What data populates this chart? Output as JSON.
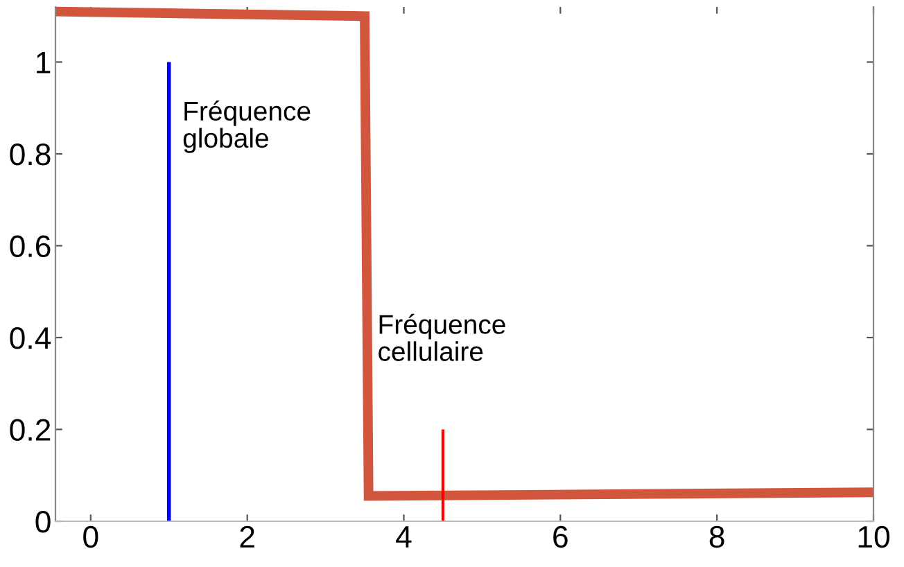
{
  "chart_data": {
    "type": "line",
    "xlim": [
      -0.45,
      10
    ],
    "ylim": [
      0,
      1.12
    ],
    "xticks": [
      0,
      2,
      4,
      6,
      8,
      10
    ],
    "yticks": [
      0,
      0.2,
      0.4,
      0.6,
      0.8,
      1
    ],
    "grid": false,
    "legend": false,
    "series": [
      {
        "color": "#d2553d",
        "x": [
          -0.45,
          3.5,
          3.55,
          10
        ],
        "values": [
          1.11,
          1.1,
          0.055,
          0.063
        ]
      },
      {
        "color": "#0000ff",
        "x": [
          1,
          1
        ],
        "values": [
          0,
          1
        ]
      },
      {
        "color": "#ff0000",
        "x": [
          4.5,
          4.5
        ],
        "values": [
          0,
          0.2
        ]
      }
    ],
    "annotations": [
      {
        "text": "Fréquence\nglobale",
        "x": 1,
        "y": 1
      },
      {
        "text": "Fréquence\ncellulaire",
        "x": 4.5,
        "y": 0.2
      }
    ]
  }
}
